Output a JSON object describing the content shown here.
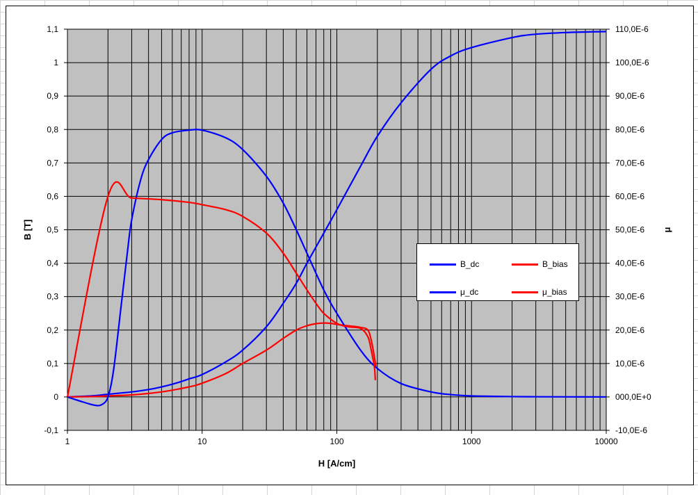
{
  "chart_data": {
    "type": "line",
    "xlabel": "H [A/cm]",
    "ylabel_left": "B [T]",
    "ylabel_right": "μ",
    "x_scale": "log",
    "xlim": [
      1,
      10000
    ],
    "ylim_left": [
      -0.1,
      1.1
    ],
    "ylim_right": [
      -1e-05,
      0.00011
    ],
    "x_ticks": [
      1,
      10,
      100,
      1000,
      10000
    ],
    "x_tick_labels": [
      "1",
      "10",
      "100",
      "1000",
      "10000"
    ],
    "y_left_ticks": [
      -0.1,
      0,
      0.1,
      0.2,
      0.3,
      0.4,
      0.5,
      0.6,
      0.7,
      0.8,
      0.9,
      1,
      1.1
    ],
    "y_left_tick_labels": [
      "-0,1",
      "0",
      "0,1",
      "0,2",
      "0,3",
      "0,4",
      "0,5",
      "0,6",
      "0,7",
      "0,8",
      "0,9",
      "1",
      "1,1"
    ],
    "y_right_tick_labels": [
      "-10,0E-6",
      "000,0E+0",
      "10,0E-6",
      "20,0E-6",
      "30,0E-6",
      "40,0E-6",
      "50,0E-6",
      "60,0E-6",
      "70,0E-6",
      "80,0E-6",
      "90,0E-6",
      "100,0E-6",
      "110,0E-6"
    ],
    "grid": true,
    "plot_background": "#c0c0c0",
    "legend_position": "right-center",
    "series": [
      {
        "name": "B_dc",
        "axis": "left",
        "color": "#0000ff",
        "x": [
          1,
          1.5,
          2,
          3,
          4,
          5,
          6,
          7,
          8,
          10,
          15,
          20,
          30,
          40,
          50,
          60,
          80,
          100,
          150,
          200,
          300,
          500,
          700,
          1000,
          2000,
          3000,
          5000,
          10000
        ],
        "y": [
          0,
          0.003,
          0.008,
          0.015,
          0.022,
          0.03,
          0.038,
          0.046,
          0.054,
          0.067,
          0.105,
          0.14,
          0.21,
          0.28,
          0.34,
          0.4,
          0.49,
          0.56,
          0.69,
          0.78,
          0.88,
          0.98,
          1.02,
          1.045,
          1.075,
          1.085,
          1.09,
          1.093
        ]
      },
      {
        "name": "B_bias",
        "axis": "left",
        "color": "#ff0000",
        "x": [
          1,
          1.5,
          2,
          3,
          5,
          8,
          10,
          15,
          20,
          30,
          40,
          50,
          60,
          70,
          80,
          90,
          100,
          120,
          150,
          170,
          180,
          190,
          195
        ],
        "y": [
          0,
          0.001,
          0.003,
          0.006,
          0.015,
          0.03,
          0.041,
          0.07,
          0.1,
          0.14,
          0.175,
          0.2,
          0.213,
          0.219,
          0.221,
          0.22,
          0.217,
          0.213,
          0.208,
          0.2,
          0.17,
          0.12,
          0.09
        ]
      },
      {
        "name": "μ_dc",
        "axis": "right",
        "color": "#0000ff",
        "x": [
          1,
          1.3,
          1.6,
          1.8,
          2,
          2.2,
          2.5,
          2.8,
          3,
          3.5,
          4,
          5,
          6,
          8,
          10,
          15,
          20,
          30,
          40,
          50,
          60,
          80,
          100,
          150,
          200,
          300,
          500,
          700,
          1000,
          2000,
          3000,
          5000,
          10000
        ],
        "y": [
          0,
          -1.5e-06,
          -2.5e-06,
          -2.3e-06,
          0,
          8e-06,
          2.7e-05,
          4.4e-05,
          5.3e-05,
          6.5e-05,
          7.1e-05,
          7.7e-05,
          7.9e-05,
          7.98e-05,
          7.98e-05,
          7.75e-05,
          7.4e-05,
          6.6e-05,
          5.8e-05,
          5e-05,
          4.3e-05,
          3.2e-05,
          2.5e-05,
          1.4e-05,
          8.5e-06,
          4e-06,
          1.5e-06,
          7e-07,
          3e-07,
          1e-07,
          5e-08,
          2e-08,
          0
        ]
      },
      {
        "name": "μ_bias",
        "axis": "right",
        "color": "#ff0000",
        "x": [
          1,
          2,
          3,
          5,
          8,
          10,
          15,
          20,
          30,
          40,
          50,
          60,
          70,
          80,
          100,
          120,
          150,
          170,
          180,
          190,
          193
        ],
        "y": [
          0,
          6e-05,
          5.95e-05,
          5.9e-05,
          5.82e-05,
          5.75e-05,
          5.6e-05,
          5.4e-05,
          4.9e-05,
          4.3e-05,
          3.7e-05,
          3.2e-05,
          2.8e-05,
          2.5e-05,
          2.2e-05,
          2.1e-05,
          2.05e-05,
          1.8e-05,
          1.4e-05,
          9e-06,
          5e-06
        ]
      }
    ]
  }
}
